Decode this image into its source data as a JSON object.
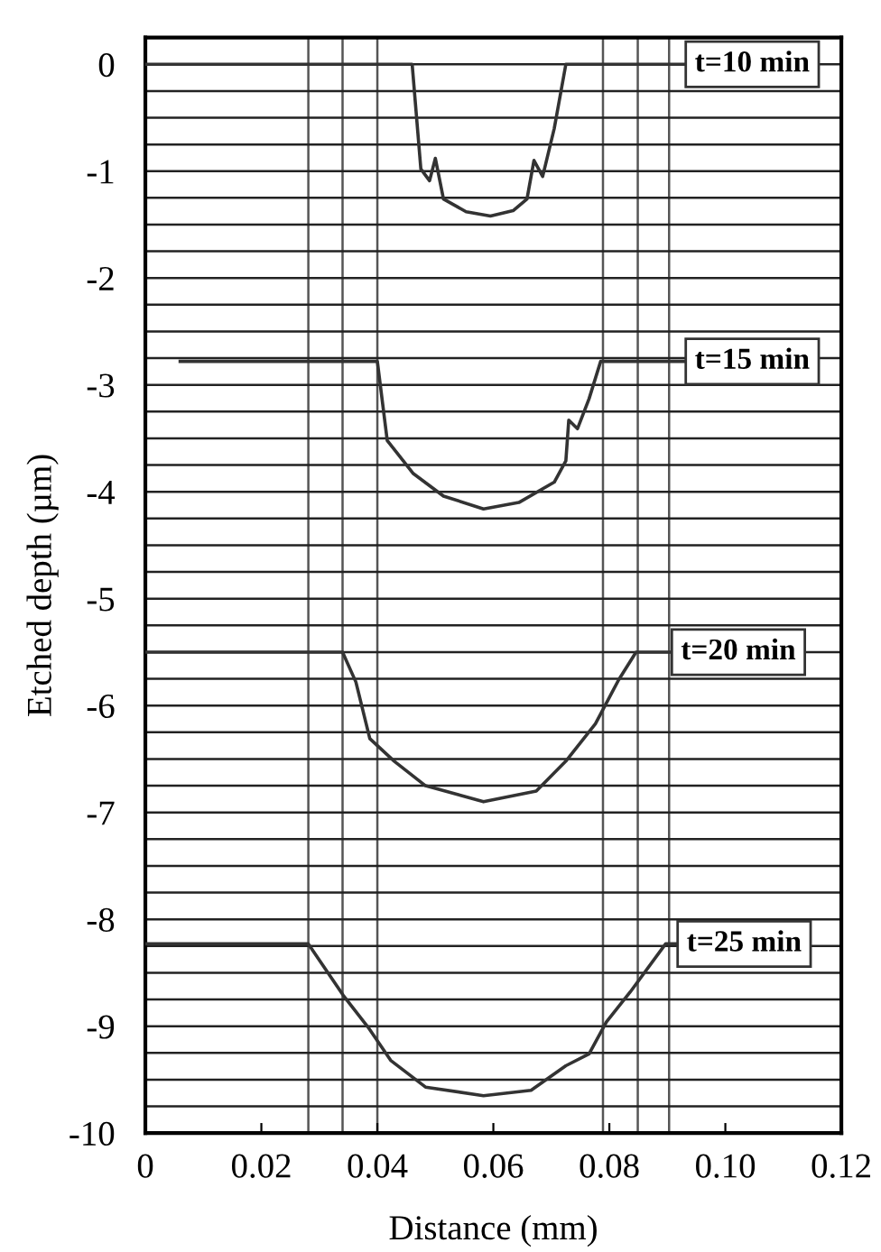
{
  "chart_data": {
    "type": "line",
    "xlabel": "Distance (mm)",
    "ylabel": "Etched depth (µm)",
    "xlim": [
      0,
      0.12
    ],
    "ylim": [
      -10,
      0.25
    ],
    "xticks": [
      0,
      0.02,
      0.04,
      0.06,
      0.08,
      {
        "value": 0.1,
        "label": "0.10"
      },
      0.12
    ],
    "yticks": [
      {
        "value": 0.25,
        "label": null
      },
      0,
      {
        "value": -0.25,
        "label": null
      },
      {
        "value": -0.5,
        "label": null
      },
      {
        "value": -0.75,
        "label": null
      },
      -1,
      {
        "value": -1.25,
        "label": null
      },
      {
        "value": -1.5,
        "label": null
      },
      {
        "value": -1.75,
        "label": null
      },
      -2,
      {
        "value": -2.25,
        "label": null
      },
      {
        "value": -2.5,
        "label": null
      },
      {
        "value": -2.75,
        "label": null
      },
      -3,
      {
        "value": -3.25,
        "label": null
      },
      {
        "value": -3.5,
        "label": null
      },
      {
        "value": -3.75,
        "label": null
      },
      -4,
      {
        "value": -4.25,
        "label": null
      },
      {
        "value": -4.5,
        "label": null
      },
      {
        "value": -4.75,
        "label": null
      },
      -5,
      {
        "value": -5.25,
        "label": null
      },
      {
        "value": -5.5,
        "label": null
      },
      {
        "value": -5.75,
        "label": null
      },
      -6,
      {
        "value": -6.25,
        "label": null
      },
      {
        "value": -6.5,
        "label": null
      },
      {
        "value": -6.75,
        "label": null
      },
      -7,
      {
        "value": -7.25,
        "label": null
      },
      {
        "value": -7.5,
        "label": null
      },
      {
        "value": -7.75,
        "label": null
      },
      -8,
      {
        "value": -8.25,
        "label": null
      },
      {
        "value": -8.5,
        "label": null
      },
      {
        "value": -8.75,
        "label": null
      },
      -9,
      {
        "value": -9.25,
        "label": null
      },
      {
        "value": -9.5,
        "label": null
      },
      {
        "value": -9.75,
        "label": null
      },
      -10
    ],
    "grid": "y",
    "marker": "none",
    "line_style": "solid",
    "series": [
      {
        "color": "#333333",
        "x": [
          0,
          0.046,
          0.0475,
          0.049,
          0.05,
          0.0514,
          0.0553,
          0.0595,
          0.0634,
          0.0658,
          0.067,
          0.0685,
          0.0705,
          0.0725,
          0.093
        ],
        "values": [
          0,
          0,
          -0.98,
          -1.09,
          -0.88,
          -1.26,
          -1.38,
          -1.42,
          -1.37,
          -1.26,
          -0.9,
          -1.05,
          -0.6,
          0,
          0
        ]
      },
      {
        "color": "#333333",
        "x": [
          0.006,
          0.04,
          0.0417,
          0.0462,
          0.0514,
          0.0583,
          0.0644,
          0.0705,
          0.0725,
          0.073,
          0.0745,
          0.0765,
          0.0785,
          0.093
        ],
        "values": [
          -2.78,
          -2.78,
          -3.52,
          -3.83,
          -4.04,
          -4.16,
          -4.1,
          -3.91,
          -3.71,
          -3.33,
          -3.41,
          -3.13,
          -2.78,
          -2.78
        ]
      },
      {
        "color": "#333333",
        "x": [
          0,
          0.034,
          0.0363,
          0.0387,
          0.0429,
          0.0483,
          0.0583,
          0.0674,
          0.0725,
          0.0776,
          0.0816,
          0.0846,
          0.0906
        ],
        "values": [
          -5.5,
          -5.5,
          -5.78,
          -6.31,
          -6.52,
          -6.75,
          -6.9,
          -6.8,
          -6.52,
          -6.17,
          -5.76,
          -5.5,
          -5.5
        ]
      },
      {
        "color": "#333333",
        "x": [
          0,
          0.0281,
          0.0341,
          0.0384,
          0.0423,
          0.0483,
          0.0583,
          0.0665,
          0.0725,
          0.0765,
          0.0795,
          0.0836,
          0.0897,
          0.0916
        ],
        "values": [
          -8.23,
          -8.23,
          -8.71,
          -9.01,
          -9.32,
          -9.57,
          -9.65,
          -9.6,
          -9.37,
          -9.26,
          -8.96,
          -8.68,
          -8.23,
          -8.23
        ]
      }
    ],
    "ref_lines": [
      {
        "axis": "x",
        "value": 0.0281,
        "color": "#555555"
      },
      {
        "axis": "x",
        "value": 0.034,
        "color": "#555555"
      },
      {
        "axis": "x",
        "value": 0.04,
        "color": "#555555"
      },
      {
        "axis": "x",
        "value": 0.0789,
        "color": "#555555"
      },
      {
        "axis": "x",
        "value": 0.0849,
        "color": "#555555"
      },
      {
        "axis": "x",
        "value": 0.0903,
        "color": "#555555"
      }
    ],
    "annotations": [
      {
        "text": "t=10 min",
        "x": 0.093,
        "y": 0
      },
      {
        "text": "t=15 min",
        "x": 0.093,
        "y": -2.78
      },
      {
        "text": "t=20 min",
        "x": 0.0906,
        "y": -5.5
      },
      {
        "text": "t=25 min",
        "x": 0.0916,
        "y": -8.23
      }
    ]
  }
}
